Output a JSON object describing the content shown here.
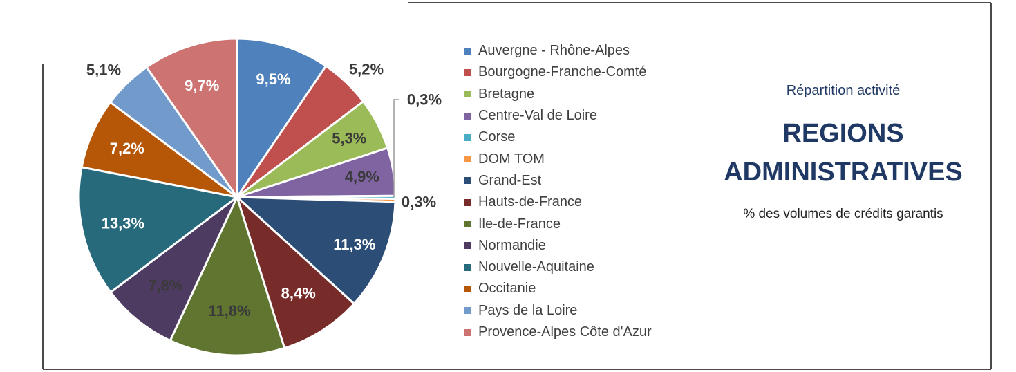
{
  "chart_data": {
    "type": "pie",
    "title": "REGIONS ADMINISTRATIVES",
    "subtitle": "Répartition activité",
    "caption": "% des volumes de crédits garantis",
    "legend_position": "right",
    "slices": [
      {
        "name": "Auvergne - Rhône-Alpes",
        "value": 9.5,
        "label": "9,5%",
        "color": "#4f81bd"
      },
      {
        "name": "Bourgogne-Franche-Comté",
        "value": 5.2,
        "label": "5,2%",
        "color": "#c0504d"
      },
      {
        "name": "Bretagne",
        "value": 5.3,
        "label": "5,3%",
        "color": "#9bbb59"
      },
      {
        "name": "Centre-Val de Loire",
        "value": 4.9,
        "label": "4,9%",
        "color": "#8064a2"
      },
      {
        "name": "Corse",
        "value": 0.3,
        "label": "0,3%",
        "color": "#4bacc6"
      },
      {
        "name": "DOM TOM",
        "value": 0.3,
        "label": "0,3%",
        "color": "#f79646"
      },
      {
        "name": "Grand-Est",
        "value": 11.3,
        "label": "11,3%",
        "color": "#2c4d75"
      },
      {
        "name": "Hauts-de-France",
        "value": 8.4,
        "label": "8,4%",
        "color": "#772c2a"
      },
      {
        "name": "Ile-de-France",
        "value": 11.8,
        "label": "11,8%",
        "color": "#5f7530"
      },
      {
        "name": "Normandie",
        "value": 7.8,
        "label": "7,8%",
        "color": "#4d3b62"
      },
      {
        "name": "Nouvelle-Aquitaine",
        "value": 13.3,
        "label": "13,3%",
        "color": "#276a7c"
      },
      {
        "name": "Occitanie",
        "value": 7.2,
        "label": "7,2%",
        "color": "#b65708"
      },
      {
        "name": "Pays de la Loire",
        "value": 5.1,
        "label": "5,1%",
        "color": "#729aca"
      },
      {
        "name": "Provence-Alpes Côte d'Azur",
        "value": 9.7,
        "label": "9,7%",
        "color": "#cd7371"
      }
    ]
  }
}
